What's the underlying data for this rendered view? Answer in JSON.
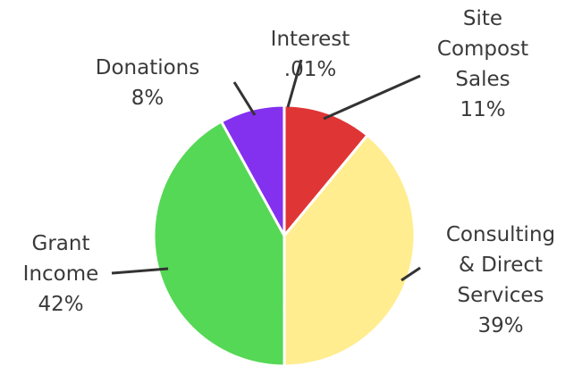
{
  "chart_data": {
    "type": "pie",
    "title": "",
    "slices": [
      {
        "label_lines": [
          "Site",
          "Compost",
          "Sales"
        ],
        "value_label": "11%",
        "value": 11,
        "color": "#e03535"
      },
      {
        "label_lines": [
          "Consulting",
          "& Direct",
          "Services"
        ],
        "value_label": "39%",
        "value": 39,
        "color": "#ffed8f"
      },
      {
        "label_lines": [
          "Grant",
          "Income"
        ],
        "value_label": "42%",
        "value": 42,
        "color": "#55d855"
      },
      {
        "label_lines": [
          "Donations"
        ],
        "value_label": "8%",
        "value": 8,
        "color": "#8430ef"
      },
      {
        "label_lines": [
          "Interest"
        ],
        "value_label": ".01%",
        "value": 0.01,
        "color": "#cccccc"
      }
    ]
  }
}
